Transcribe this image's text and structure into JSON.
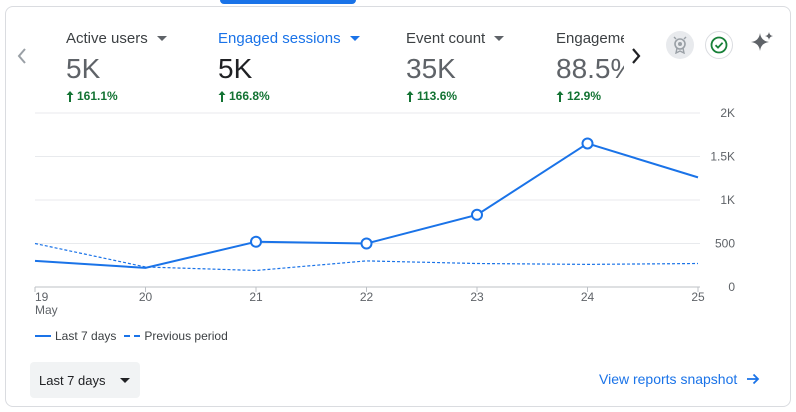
{
  "metrics": [
    {
      "label": "Active users",
      "value": "5K",
      "change": "161.1%"
    },
    {
      "label": "Engaged sessions",
      "value": "5K",
      "change": "166.8%"
    },
    {
      "label": "Event count",
      "value": "35K",
      "change": "113.6%"
    },
    {
      "label": "Engagement rate",
      "value": "88.5%",
      "change": "12.9%"
    }
  ],
  "icons": {
    "nav_prev": "chevron-left-icon",
    "nav_next": "chevron-right-icon",
    "badge": "award-badge-icon",
    "check": "check-circle-icon",
    "sparkle": "sparkle-icon"
  },
  "chart_data": {
    "type": "line",
    "x": [
      "19",
      "20",
      "21",
      "22",
      "23",
      "24",
      "25"
    ],
    "x_sub": [
      "May",
      "",
      "",
      "",
      "",
      "",
      ""
    ],
    "y_ticks": [
      "0",
      "500",
      "1K",
      "1.5K",
      "2K"
    ],
    "y_tick_values": [
      0,
      500,
      1000,
      1500,
      2000
    ],
    "ylim": [
      0,
      2000
    ],
    "series": [
      {
        "name": "Last 7 days",
        "values": [
          300,
          220,
          520,
          500,
          830,
          1650,
          1260
        ],
        "style": "solid"
      },
      {
        "name": "Previous period",
        "values": [
          500,
          230,
          190,
          300,
          270,
          260,
          270
        ],
        "style": "dashed"
      }
    ],
    "color": "#1a73e8",
    "grid": true,
    "legend_position": "bottom-left"
  },
  "controls": {
    "date_range": "Last 7 days",
    "snapshot_link": "View reports snapshot"
  },
  "colors": {
    "accent": "#1a73e8",
    "positive": "#137333",
    "check_green": "#188038"
  }
}
